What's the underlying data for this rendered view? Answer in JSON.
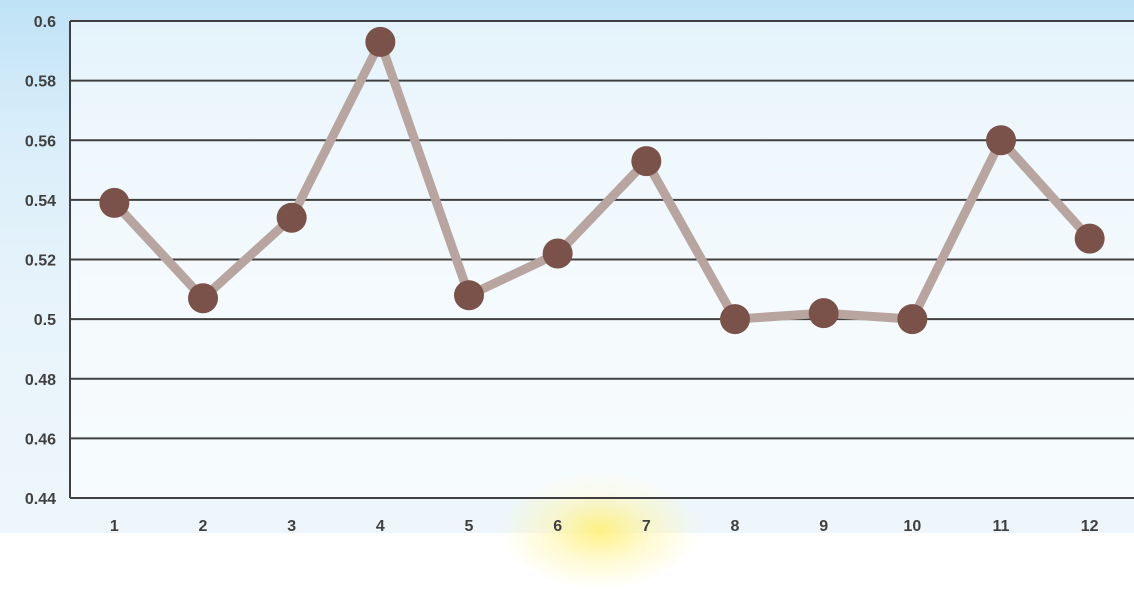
{
  "chart_data": {
    "type": "line",
    "title": "",
    "xlabel": "",
    "ylabel": "",
    "x": [
      "1",
      "2",
      "3",
      "4",
      "5",
      "6",
      "7",
      "8",
      "9",
      "10",
      "11",
      "12"
    ],
    "series": [
      {
        "values": [
          0.539,
          0.507,
          0.534,
          0.593,
          0.508,
          0.522,
          0.553,
          0.5,
          0.502,
          0.5,
          0.56,
          0.527
        ]
      }
    ],
    "ylim": [
      0.44,
      0.6
    ],
    "yticks": [
      "0.44",
      "0.46",
      "0.48",
      "0.5",
      "0.52",
      "0.54",
      "0.56",
      "0.58",
      "0.6"
    ],
    "grid": true,
    "legend": "none",
    "colors": {
      "line": "#b8a59f",
      "marker": "#7a5249",
      "grid": "#404040",
      "tick_text": "#404040",
      "plot_background": "#ffffff"
    }
  }
}
